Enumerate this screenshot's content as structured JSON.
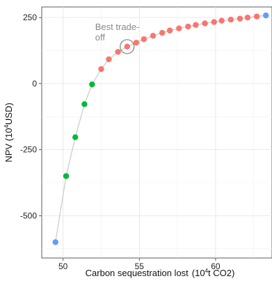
{
  "chart_data": {
    "type": "scatter",
    "xlabel_main": "Carbon sequestration lost",
    "xlabel_unit_pre": "(10",
    "xlabel_unit_sup": "4",
    "xlabel_unit_post": "t CO2)",
    "ylabel_pre": "NPV (10",
    "ylabel_sup": "4",
    "ylabel_post": "USD)",
    "xlim": [
      48.6,
      63.7
    ],
    "ylim": [
      -660,
      290
    ],
    "xticks": [
      50,
      55,
      60
    ],
    "yticks": [
      -500,
      -250,
      0,
      250
    ],
    "grid": true,
    "annotation": {
      "line1": "Best trade-",
      "line2": "off",
      "x": 54.2,
      "y": 140
    },
    "colors": {
      "blue": "#619cff",
      "green": "#00ba38",
      "red": "#f8766d",
      "line": "#c9c9c9"
    },
    "points": [
      {
        "x": 49.5,
        "y": -600,
        "group": "blue"
      },
      {
        "x": 50.2,
        "y": -350,
        "group": "green"
      },
      {
        "x": 50.8,
        "y": -203,
        "group": "green"
      },
      {
        "x": 51.4,
        "y": -78,
        "group": "green"
      },
      {
        "x": 51.9,
        "y": -3,
        "group": "green"
      },
      {
        "x": 52.5,
        "y": 55,
        "group": "red"
      },
      {
        "x": 53.0,
        "y": 92,
        "group": "red"
      },
      {
        "x": 53.6,
        "y": 120,
        "group": "red"
      },
      {
        "x": 54.2,
        "y": 140,
        "group": "red"
      },
      {
        "x": 54.8,
        "y": 155,
        "group": "red"
      },
      {
        "x": 55.3,
        "y": 168,
        "group": "red"
      },
      {
        "x": 55.9,
        "y": 181,
        "group": "red"
      },
      {
        "x": 56.5,
        "y": 192,
        "group": "red"
      },
      {
        "x": 57.0,
        "y": 201,
        "group": "red"
      },
      {
        "x": 57.6,
        "y": 209,
        "group": "red"
      },
      {
        "x": 58.2,
        "y": 216,
        "group": "red"
      },
      {
        "x": 58.7,
        "y": 222,
        "group": "red"
      },
      {
        "x": 59.3,
        "y": 228,
        "group": "red"
      },
      {
        "x": 59.9,
        "y": 233,
        "group": "red"
      },
      {
        "x": 60.4,
        "y": 238,
        "group": "red"
      },
      {
        "x": 61.0,
        "y": 242,
        "group": "red"
      },
      {
        "x": 61.6,
        "y": 246,
        "group": "red"
      },
      {
        "x": 62.1,
        "y": 250,
        "group": "red"
      },
      {
        "x": 62.7,
        "y": 254,
        "group": "red"
      },
      {
        "x": 63.3,
        "y": 258,
        "group": "blue"
      }
    ]
  }
}
